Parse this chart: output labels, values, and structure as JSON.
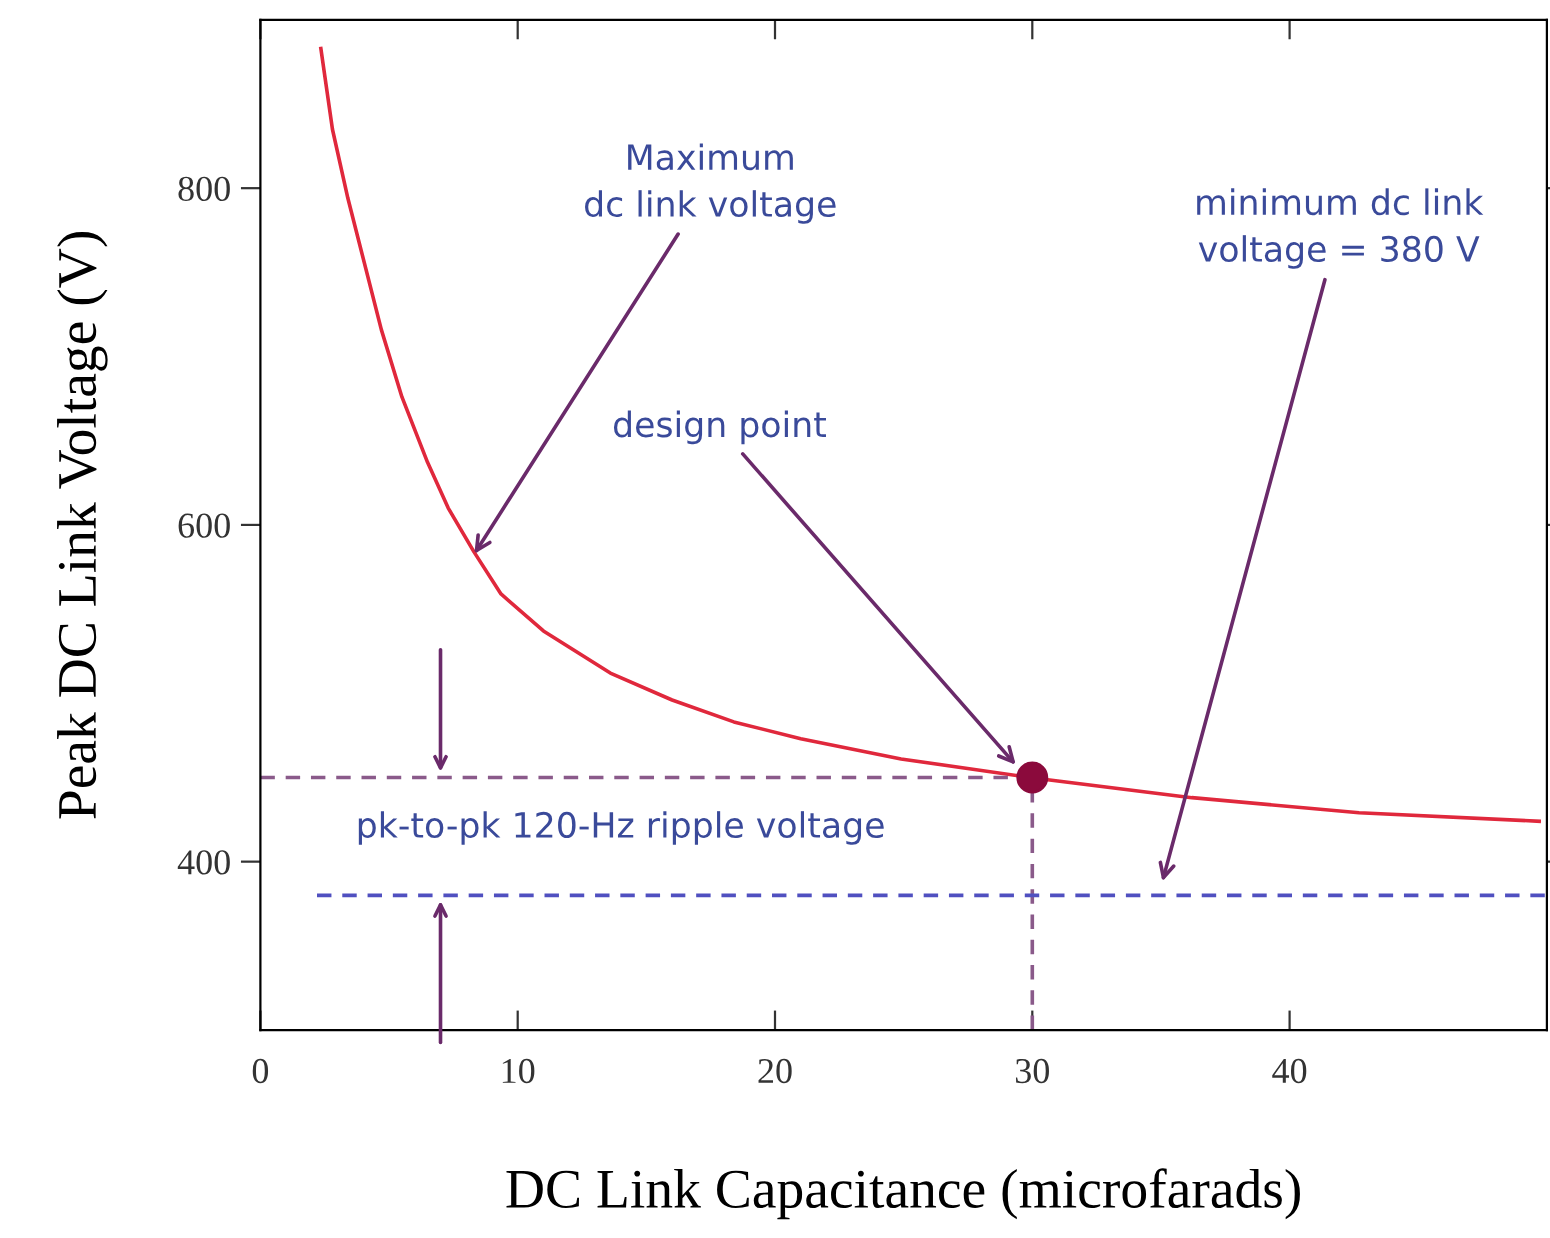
{
  "chart_data": {
    "type": "line",
    "xlabel": "DC Link Capacitance (microfarads)",
    "ylabel": "Peak DC Link Voltage (V)",
    "xlim": [
      0,
      50
    ],
    "ylim": [
      300,
      900
    ],
    "xticks": [
      0,
      10,
      20,
      30,
      40
    ],
    "yticks": [
      400,
      600,
      800
    ],
    "grid": false,
    "legend": false,
    "series": [
      {
        "color": "#e0283c",
        "line_style": "solid",
        "x": [
          2.35,
          2.8,
          3.4,
          4.7,
          5.5,
          6.5,
          7.3,
          8.3,
          9.35,
          11,
          13.6,
          16,
          18.4,
          21,
          24.9,
          29.9,
          36.2,
          42.7,
          49.7
        ],
        "values": [
          883,
          835,
          794,
          716,
          676,
          637,
          610,
          584,
          559,
          537,
          512,
          496,
          483,
          473,
          461,
          450,
          438,
          429,
          424
        ]
      },
      {
        "color": "#8a5a8a",
        "line_style": "dashed",
        "x": [
          0,
          30
        ],
        "values": [
          450,
          450
        ]
      },
      {
        "color": "#8a5a8a",
        "line_style": "dashed",
        "x": [
          30,
          30
        ],
        "values": [
          300,
          450
        ]
      },
      {
        "color": "#5050c0",
        "line_style": "dashed",
        "x": [
          2.2,
          50
        ],
        "values": [
          380,
          380
        ]
      },
      {
        "type": "scatter",
        "color": "#8b0a3c",
        "marker": "circle",
        "x": [
          30
        ],
        "values": [
          450
        ]
      }
    ],
    "annotations": [
      {
        "text": "Maximum\ndc link voltage",
        "x": 8.2,
        "y": 580
      },
      {
        "text": "design point",
        "x": 29.5,
        "y": 455
      },
      {
        "text": "minimum dc link\nvoltage = 380 V",
        "x": 35,
        "y": 385
      },
      "pk-to-pk 120-Hz ripple voltage"
    ]
  }
}
